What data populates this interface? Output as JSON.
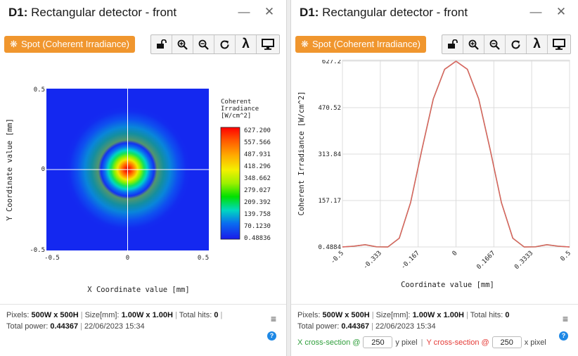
{
  "left": {
    "title_prefix": "D1:",
    "title_rest": "Rectangular detector - front",
    "spot_button": "Spot (Coherent Irradiance)",
    "plot": {
      "xlabel": "X Coordinate value [mm]",
      "ylabel": "Y Coordinate value [mm]",
      "xticks": [
        "-0.5",
        "0",
        "0.5"
      ],
      "yticks": [
        "0.5",
        "0",
        "-0.5"
      ],
      "colorbar_title": [
        "Coherent",
        "Irradiance",
        "[W/cm^2]"
      ],
      "colorbar_ticks": [
        "627.200",
        "557.566",
        "487.931",
        "418.296",
        "348.662",
        "279.027",
        "209.392",
        "139.758",
        "70.1230",
        "0.48836"
      ]
    },
    "footer": {
      "pixels_label": "Pixels:",
      "pixels_value": "500W x 500H",
      "size_label": "Size[mm]:",
      "size_value": "1.00W x 1.00H",
      "hits_label": "Total hits:",
      "hits_value": "0",
      "power_label": "Total power:",
      "power_value": "0.44367",
      "timestamp": "22/06/2023 15:34"
    }
  },
  "right": {
    "title_prefix": "D1:",
    "title_rest": "Rectangular detector - front",
    "spot_button": "Spot (Coherent Irradiance)",
    "footer": {
      "pixels_label": "Pixels:",
      "pixels_value": "500W x 500H",
      "size_label": "Size[mm]:",
      "size_value": "1.00W x 1.00H",
      "hits_label": "Total hits:",
      "hits_value": "0",
      "power_label": "Total power:",
      "power_value": "0.44367",
      "timestamp": "22/06/2023 15:34",
      "xsec_label": "X cross-section @",
      "xsec_value": "250",
      "xsec_unit": "y pixel",
      "ysec_label": "Y cross-section @",
      "ysec_value": "250",
      "ysec_unit": "x pixel"
    }
  },
  "icons": {
    "unlock": "unlock-icon",
    "zoom_in": "zoom-in-icon",
    "zoom_out": "zoom-out-icon",
    "refresh": "refresh-icon",
    "lambda": "lambda-icon",
    "monitor": "monitor-icon",
    "spot": "spot-icon",
    "minimize": "minimize-icon",
    "close": "close-icon",
    "menu": "menu-icon",
    "help": "help-icon"
  },
  "colors": {
    "accent_orange": "#f0962e",
    "x_section_green": "#2e9e3a",
    "y_section_red": "#e53935",
    "curve_red": "#e06060",
    "curve_green": "#7aa060"
  },
  "chart_data": {
    "type": "line",
    "xlabel": "Coordinate value [mm]",
    "ylabel": "Coherent Irradiance [W/cm^2]",
    "xticks": [
      "-0.5",
      "-0.333",
      "-0.167",
      "0",
      "0.1667",
      "0.3333",
      "0.5"
    ],
    "yticks": [
      "627.2",
      "470.52",
      "313.84",
      "157.17",
      "0.4884"
    ],
    "xlim": [
      -0.5,
      0.5
    ],
    "ylim": [
      0.4884,
      627.2
    ],
    "grid": true,
    "series": [
      {
        "name": "X cross-section",
        "color": "#7aa060",
        "x": [
          -0.5,
          -0.45,
          -0.4,
          -0.35,
          -0.3,
          -0.25,
          -0.2,
          -0.15,
          -0.1,
          -0.05,
          0,
          0.05,
          0.1,
          0.15,
          0.2,
          0.25,
          0.3,
          0.35,
          0.4,
          0.45,
          0.5
        ],
        "y": [
          0.5,
          3,
          8,
          1,
          0.5,
          30,
          150,
          330,
          500,
          600,
          627.2,
          600,
          500,
          330,
          150,
          30,
          0.5,
          1,
          8,
          3,
          0.5
        ]
      },
      {
        "name": "Y cross-section",
        "color": "#e06060",
        "x": [
          -0.5,
          -0.45,
          -0.4,
          -0.35,
          -0.3,
          -0.25,
          -0.2,
          -0.15,
          -0.1,
          -0.05,
          0,
          0.05,
          0.1,
          0.15,
          0.2,
          0.25,
          0.3,
          0.35,
          0.4,
          0.45,
          0.5
        ],
        "y": [
          0.5,
          3,
          8,
          1,
          0.5,
          30,
          150,
          330,
          500,
          600,
          627.2,
          600,
          500,
          330,
          150,
          30,
          0.5,
          1,
          8,
          3,
          0.5
        ]
      }
    ]
  }
}
